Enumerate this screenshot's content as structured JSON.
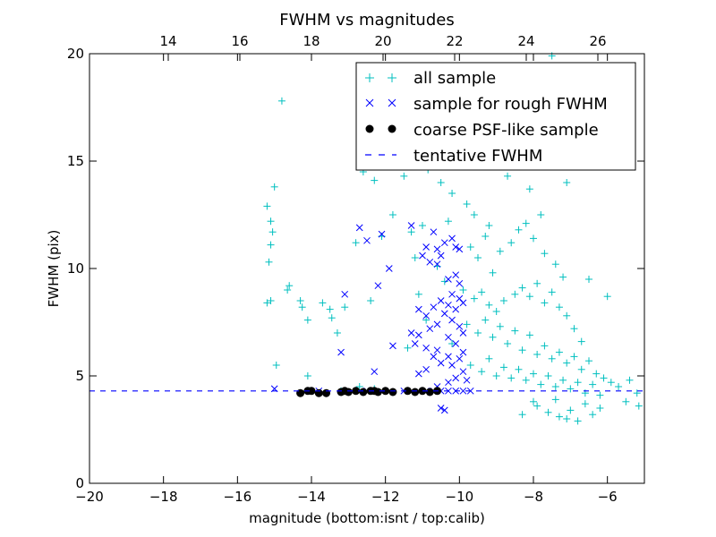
{
  "chart_data": {
    "type": "scatter",
    "title": "FWHM vs magnitudes",
    "xlabel": "magnitude (bottom:isnt / top:calib)",
    "ylabel": "FWHM (pix)",
    "xlim": [
      -20,
      -5
    ],
    "ylim": [
      0,
      20
    ],
    "top_xlim": [
      11.8,
      27.3
    ],
    "x_ticks": [
      -20,
      -18,
      -16,
      -14,
      -12,
      -10,
      -8,
      -6
    ],
    "x_tick_labels": [
      "−20",
      "−18",
      "−16",
      "−14",
      "−12",
      "−10",
      "−8",
      "−6"
    ],
    "y_ticks": [
      0,
      5,
      10,
      15,
      20
    ],
    "y_tick_labels": [
      "0",
      "5",
      "10",
      "15",
      "20"
    ],
    "top_ticks": [
      14,
      16,
      18,
      20,
      22,
      24,
      26
    ],
    "top_tick_labels": [
      "14",
      "16",
      "18",
      "20",
      "22",
      "24",
      "26"
    ],
    "grid": false,
    "legend_position": "upper-right",
    "legend": [
      {
        "label": "all sample",
        "marker": "plus",
        "color": "#00bfbf"
      },
      {
        "label": "sample for rough FWHM",
        "marker": "x",
        "color": "#0000ff"
      },
      {
        "label": "coarse PSF-like sample",
        "marker": "circle",
        "color": "#000000"
      },
      {
        "label": "tentative FWHM",
        "marker": "dashed-line",
        "color": "#0000ff"
      }
    ],
    "tentative_fwhm": 4.3,
    "series": [
      {
        "name": "all sample",
        "color": "#00bfbf",
        "marker": "plus",
        "points": [
          [
            -14.8,
            17.8
          ],
          [
            -15.0,
            13.8
          ],
          [
            -15.2,
            12.9
          ],
          [
            -15.1,
            12.2
          ],
          [
            -15.05,
            11.7
          ],
          [
            -15.1,
            11.1
          ],
          [
            -15.15,
            10.3
          ],
          [
            -15.2,
            8.4
          ],
          [
            -15.1,
            8.5
          ],
          [
            -14.95,
            5.5
          ],
          [
            -14.6,
            9.2
          ],
          [
            -14.65,
            9.0
          ],
          [
            -14.3,
            8.5
          ],
          [
            -14.25,
            8.2
          ],
          [
            -14.1,
            7.6
          ],
          [
            -13.7,
            8.4
          ],
          [
            -13.5,
            8.1
          ],
          [
            -13.45,
            7.7
          ],
          [
            -13.3,
            7.0
          ],
          [
            -14.1,
            5.0
          ],
          [
            -13.1,
            8.2
          ],
          [
            -12.4,
            8.5
          ],
          [
            -12.8,
            11.2
          ],
          [
            -12.1,
            11.5
          ],
          [
            -11.8,
            12.5
          ],
          [
            -11.3,
            11.7
          ],
          [
            -11.0,
            12.0
          ],
          [
            -10.85,
            14.6
          ],
          [
            -10.3,
            12.2
          ],
          [
            -11.5,
            14.3
          ],
          [
            -12.6,
            14.5
          ],
          [
            -12.3,
            14.1
          ],
          [
            -11.2,
            10.5
          ],
          [
            -10.6,
            10.1
          ],
          [
            -10.4,
            9.4
          ],
          [
            -11.1,
            8.8
          ],
          [
            -10.9,
            7.6
          ],
          [
            -11.4,
            6.3
          ],
          [
            -10.2,
            6.5
          ],
          [
            -12.3,
            4.4
          ],
          [
            -12.7,
            4.5
          ],
          [
            -13.2,
            4.3
          ],
          [
            -10.5,
            14.0
          ],
          [
            -10.2,
            13.5
          ],
          [
            -9.8,
            13.0
          ],
          [
            -9.6,
            12.5
          ],
          [
            -9.2,
            12.0
          ],
          [
            -8.7,
            14.3
          ],
          [
            -8.1,
            13.7
          ],
          [
            -7.6,
            15.1
          ],
          [
            -7.8,
            12.5
          ],
          [
            -7.1,
            14.0
          ],
          [
            -7.5,
            19.9
          ],
          [
            -6.5,
            9.5
          ],
          [
            -6.0,
            8.7
          ],
          [
            -5.4,
            4.8
          ],
          [
            -5.2,
            4.2
          ],
          [
            -5.15,
            3.6
          ],
          [
            -5.5,
            3.8
          ],
          [
            -9.7,
            11.0
          ],
          [
            -9.5,
            10.5
          ],
          [
            -9.3,
            11.5
          ],
          [
            -9.1,
            9.8
          ],
          [
            -8.9,
            10.8
          ],
          [
            -8.6,
            11.2
          ],
          [
            -8.4,
            11.8
          ],
          [
            -8.2,
            12.1
          ],
          [
            -8.0,
            11.4
          ],
          [
            -7.7,
            10.7
          ],
          [
            -7.4,
            10.2
          ],
          [
            -7.2,
            9.6
          ],
          [
            -9.9,
            9.0
          ],
          [
            -9.6,
            8.6
          ],
          [
            -9.4,
            8.9
          ],
          [
            -9.2,
            8.3
          ],
          [
            -9.0,
            8.0
          ],
          [
            -8.8,
            8.5
          ],
          [
            -8.5,
            8.8
          ],
          [
            -8.3,
            9.1
          ],
          [
            -8.1,
            8.7
          ],
          [
            -7.9,
            9.3
          ],
          [
            -7.7,
            8.4
          ],
          [
            -7.5,
            8.9
          ],
          [
            -7.3,
            8.2
          ],
          [
            -7.1,
            7.8
          ],
          [
            -6.9,
            7.2
          ],
          [
            -6.7,
            6.6
          ],
          [
            -9.8,
            7.4
          ],
          [
            -9.5,
            7.0
          ],
          [
            -9.3,
            7.6
          ],
          [
            -9.1,
            6.8
          ],
          [
            -8.9,
            7.3
          ],
          [
            -8.7,
            6.5
          ],
          [
            -8.5,
            7.1
          ],
          [
            -8.3,
            6.2
          ],
          [
            -8.1,
            6.9
          ],
          [
            -7.9,
            6.0
          ],
          [
            -7.7,
            6.4
          ],
          [
            -7.5,
            5.8
          ],
          [
            -7.3,
            6.1
          ],
          [
            -7.1,
            5.6
          ],
          [
            -6.9,
            5.9
          ],
          [
            -6.7,
            5.3
          ],
          [
            -6.5,
            5.7
          ],
          [
            -6.3,
            5.1
          ],
          [
            -6.1,
            4.9
          ],
          [
            -5.9,
            4.7
          ],
          [
            -5.7,
            4.5
          ],
          [
            -9.7,
            5.5
          ],
          [
            -9.4,
            5.2
          ],
          [
            -9.2,
            5.8
          ],
          [
            -9.0,
            5.0
          ],
          [
            -8.8,
            5.4
          ],
          [
            -8.6,
            4.9
          ],
          [
            -8.4,
            5.3
          ],
          [
            -8.2,
            4.8
          ],
          [
            -8.0,
            5.1
          ],
          [
            -7.8,
            4.6
          ],
          [
            -7.6,
            5.0
          ],
          [
            -7.4,
            4.5
          ],
          [
            -7.2,
            4.8
          ],
          [
            -7.0,
            4.4
          ],
          [
            -6.8,
            4.7
          ],
          [
            -6.6,
            4.2
          ],
          [
            -6.4,
            4.6
          ],
          [
            -6.2,
            4.1
          ],
          [
            -7.9,
            3.6
          ],
          [
            -7.6,
            3.3
          ],
          [
            -7.3,
            3.1
          ],
          [
            -7.0,
            3.4
          ],
          [
            -6.8,
            2.9
          ],
          [
            -6.6,
            3.7
          ],
          [
            -6.4,
            3.2
          ],
          [
            -6.2,
            3.5
          ],
          [
            -8.3,
            3.2
          ],
          [
            -8.0,
            3.8
          ],
          [
            -7.4,
            3.9
          ],
          [
            -7.1,
            3.0
          ]
        ]
      },
      {
        "name": "sample for rough FWHM",
        "color": "#0000ff",
        "marker": "x",
        "points": [
          [
            -12.7,
            11.9
          ],
          [
            -12.1,
            11.6
          ],
          [
            -12.5,
            11.3
          ],
          [
            -11.3,
            12.0
          ],
          [
            -10.7,
            11.7
          ],
          [
            -10.4,
            11.2
          ],
          [
            -10.9,
            11.0
          ],
          [
            -10.6,
            10.9
          ],
          [
            -10.5,
            10.6
          ],
          [
            -10.2,
            11.4
          ],
          [
            -10.1,
            11.0
          ],
          [
            -11.0,
            10.6
          ],
          [
            -10.8,
            10.3
          ],
          [
            -10.6,
            10.2
          ],
          [
            -12.2,
            9.2
          ],
          [
            -11.9,
            10.0
          ],
          [
            -10.0,
            10.9
          ],
          [
            -10.3,
            9.5
          ],
          [
            -10.1,
            9.7
          ],
          [
            -10.0,
            9.3
          ],
          [
            -13.1,
            8.8
          ],
          [
            -10.2,
            8.8
          ],
          [
            -10.0,
            8.6
          ],
          [
            -9.9,
            8.4
          ],
          [
            -10.1,
            8.1
          ],
          [
            -10.3,
            8.3
          ],
          [
            -10.5,
            8.5
          ],
          [
            -10.7,
            8.2
          ],
          [
            -10.9,
            7.8
          ],
          [
            -11.1,
            8.1
          ],
          [
            -10.4,
            7.9
          ],
          [
            -10.2,
            7.6
          ],
          [
            -10.6,
            7.4
          ],
          [
            -10.8,
            7.2
          ],
          [
            -10.0,
            7.3
          ],
          [
            -9.9,
            7.0
          ],
          [
            -10.3,
            6.8
          ],
          [
            -11.1,
            6.9
          ],
          [
            -11.3,
            7.0
          ],
          [
            -11.2,
            6.5
          ],
          [
            -10.9,
            6.3
          ],
          [
            -10.6,
            6.2
          ],
          [
            -10.1,
            6.5
          ],
          [
            -9.9,
            6.1
          ],
          [
            -10.3,
            5.9
          ],
          [
            -10.5,
            5.6
          ],
          [
            -10.7,
            5.9
          ],
          [
            -10.9,
            5.3
          ],
          [
            -11.1,
            5.1
          ],
          [
            -10.2,
            5.5
          ],
          [
            -10.0,
            5.8
          ],
          [
            -9.9,
            5.2
          ],
          [
            -10.1,
            4.9
          ],
          [
            -10.3,
            4.7
          ],
          [
            -10.6,
            4.5
          ],
          [
            -11.8,
            6.4
          ],
          [
            -12.3,
            5.2
          ],
          [
            -13.2,
            6.1
          ],
          [
            -13.8,
            4.3
          ],
          [
            -15.0,
            4.4
          ],
          [
            -12.5,
            4.3
          ],
          [
            -11.5,
            4.3
          ],
          [
            -10.9,
            4.3
          ],
          [
            -10.7,
            4.3
          ],
          [
            -10.5,
            4.3
          ],
          [
            -10.3,
            4.3
          ],
          [
            -10.1,
            4.3
          ],
          [
            -9.9,
            4.3
          ],
          [
            -9.7,
            4.3
          ],
          [
            -10.4,
            3.4
          ],
          [
            -10.5,
            3.5
          ],
          [
            -9.8,
            4.8
          ]
        ]
      },
      {
        "name": "coarse PSF-like sample",
        "color": "#000000",
        "marker": "circle",
        "points": [
          [
            -14.3,
            4.2
          ],
          [
            -14.0,
            4.3
          ],
          [
            -13.8,
            4.2
          ],
          [
            -13.6,
            4.2
          ],
          [
            -13.2,
            4.25
          ],
          [
            -13.0,
            4.25
          ],
          [
            -12.8,
            4.3
          ],
          [
            -12.6,
            4.25
          ],
          [
            -12.4,
            4.3
          ],
          [
            -12.2,
            4.25
          ],
          [
            -12.0,
            4.3
          ],
          [
            -11.8,
            4.25
          ],
          [
            -11.4,
            4.3
          ],
          [
            -11.2,
            4.25
          ],
          [
            -11.0,
            4.3
          ],
          [
            -10.8,
            4.25
          ],
          [
            -10.6,
            4.3
          ],
          [
            -14.1,
            4.3
          ],
          [
            -13.1,
            4.3
          ],
          [
            -12.3,
            4.3
          ]
        ]
      }
    ]
  }
}
